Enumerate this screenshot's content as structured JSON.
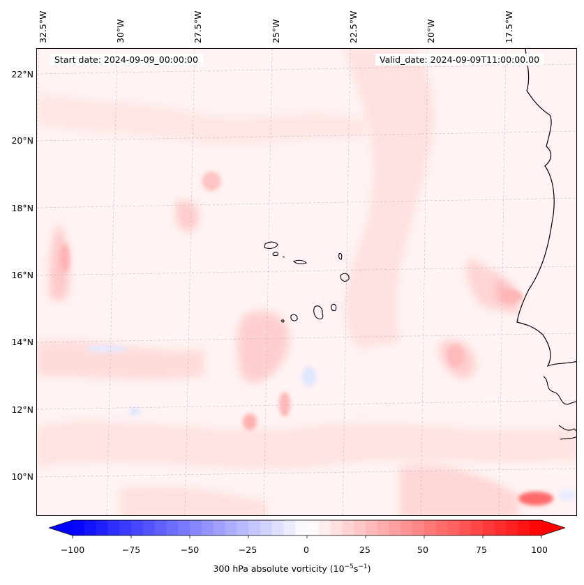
{
  "map": {
    "start_date": "Start date: 2024-09-09_00:00:00",
    "valid_date": "Valid_date: 2024-09-09T11:00:00.00",
    "lon_labels": [
      "32.5°W",
      "30°W",
      "27.5°W",
      "25°W",
      "22.5°W",
      "20°W",
      "17.5°W"
    ],
    "lat_labels": [
      "22°N",
      "20°N",
      "18°N",
      "16°N",
      "14°N",
      "12°N",
      "10°N"
    ],
    "field": "300 hPa absolute vorticity",
    "field_colors": {
      "negative": "#0000ff",
      "zero": "#ffffff",
      "positive": "#ff0000",
      "coast": "#000000"
    }
  },
  "colorbar": {
    "ticks": [
      "−100",
      "−75",
      "−50",
      "−25",
      "0",
      "25",
      "50",
      "75",
      "100"
    ],
    "label_main": "300 hPa absolute vorticity (10",
    "label_exp1": "−5",
    "label_mid": "s",
    "label_exp2": "−1",
    "label_end": ")",
    "range": [
      -100,
      100
    ],
    "cmap": "bwr"
  }
}
